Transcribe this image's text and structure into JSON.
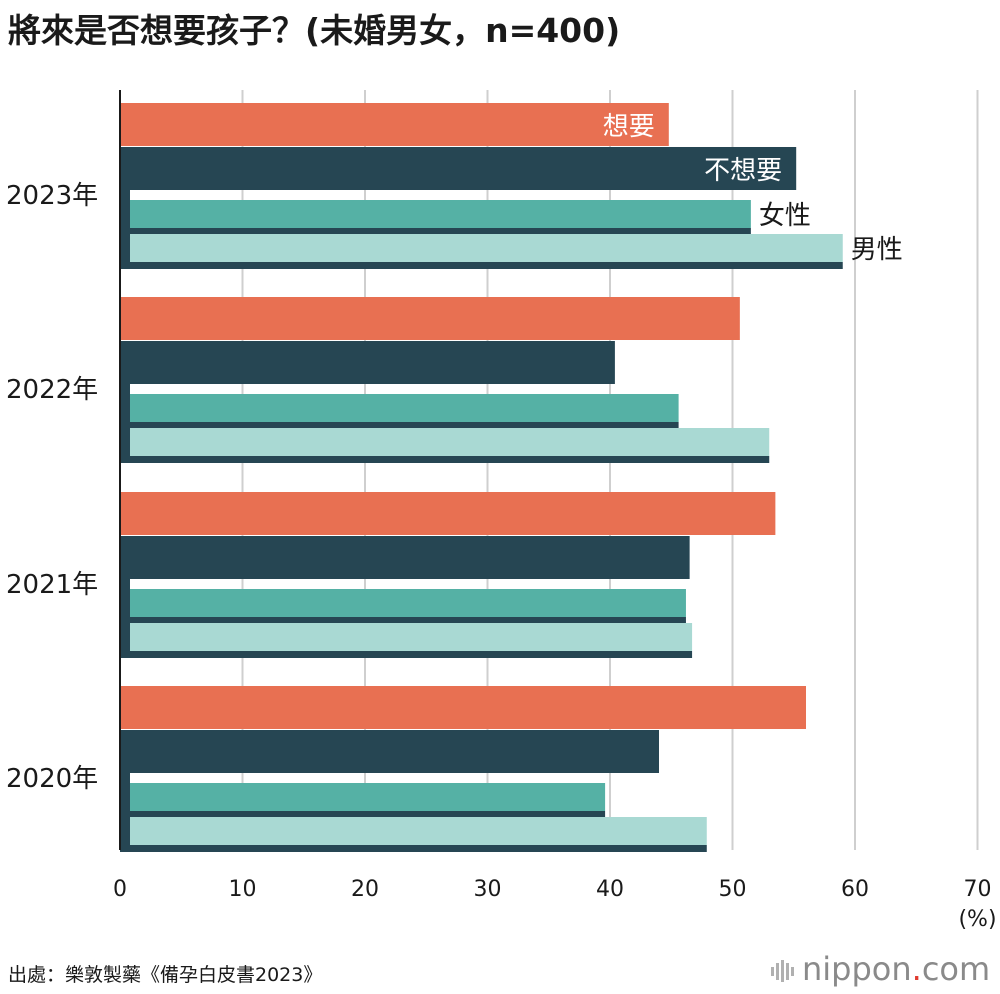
{
  "title": "將來是否想要孩子？(未婚男女，n=400)",
  "source": "出處：樂敦製藥《備孕白皮書2023》",
  "brand": {
    "name": "nippon",
    "dot": ".",
    "suffix": "com"
  },
  "chart_data": {
    "type": "bar",
    "orientation": "horizontal",
    "title": "將來是否想要孩子？(未婚男女，n=400)",
    "unit": "(%)",
    "xlim": [
      0,
      70
    ],
    "ticks": [
      "0",
      "10",
      "20",
      "30",
      "40",
      "50",
      "60",
      "70"
    ],
    "categories": [
      "2023年",
      "2022年",
      "2021年",
      "2020年"
    ],
    "series": [
      {
        "name": "想要",
        "color": "#e87052",
        "values": [
          44.8,
          50.6,
          53.5,
          56.0
        ]
      },
      {
        "name": "不想要",
        "color": "#264653",
        "values": [
          55.2,
          40.4,
          46.5,
          44.0
        ]
      },
      {
        "name": "女性",
        "color": "#55b1a5",
        "values": [
          51.5,
          45.6,
          46.2,
          39.6
        ]
      },
      {
        "name": "男性",
        "color": "#a9d9d3",
        "values": [
          59.0,
          53.0,
          46.7,
          47.9
        ]
      }
    ],
    "grid": true
  }
}
